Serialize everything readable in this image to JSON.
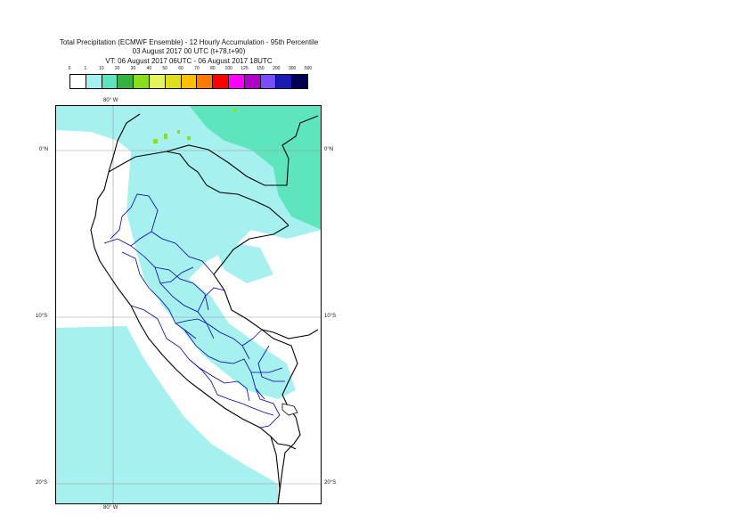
{
  "title": {
    "line1": "Total Precipitation (ECMWF Ensemble) - 12 Hourly Accumulation - 95th Percentile",
    "line2": "03 August 2017 00 UTC (t+78,t+90)",
    "line3": "VT: 06 August 2017 06UTC - 06 August 2017 18UTC"
  },
  "legend": {
    "ticks": [
      "0",
      "1",
      "10",
      "20",
      "30",
      "40",
      "50",
      "60",
      "70",
      "80",
      "100",
      "125",
      "150",
      "200",
      "300",
      "500"
    ],
    "colors": [
      "#ffffff",
      "#a6f0ef",
      "#5fe5be",
      "#35b13f",
      "#8bdc1b",
      "#e4f55b",
      "#dede1f",
      "#ffc000",
      "#ff7a00",
      "#ff0000",
      "#ff00ff",
      "#b000c8",
      "#7a4cff",
      "#1a1ab4",
      "#000050"
    ]
  },
  "axes": {
    "lon_top": "80° W",
    "lon_bottom": "80° W",
    "lat_labels": [
      "0°N",
      "10°S",
      "20°S"
    ]
  },
  "map": {
    "border_color": "#000000",
    "region_color": "#0000aa",
    "shading_light": "#a6f0ef",
    "shading_mid": "#5fe5be",
    "shading_high": "#8bdc1b"
  }
}
